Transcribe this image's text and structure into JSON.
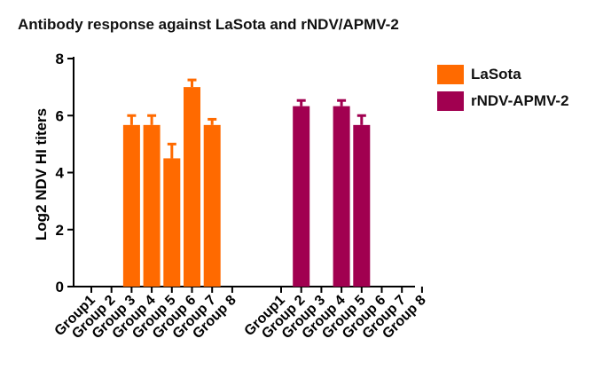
{
  "chart_data": {
    "type": "bar",
    "title": "Antibody response against LaSota and rNDV/APMV-2",
    "xlabel": "",
    "ylabel": "Log2 NDV HI titers",
    "ylim": [
      0,
      8
    ],
    "yticks": [
      "0",
      "2",
      "4",
      "6",
      "8"
    ],
    "grid": false,
    "legend_position": "top-right",
    "groups": [
      {
        "series": "LaSota",
        "color": "#ff6a00",
        "categories": [
          "Group1",
          "Group 2",
          "Group 3",
          "Group 4",
          "Group 5",
          "Group 6",
          "Group 7",
          "Group 8"
        ],
        "values": [
          0,
          0,
          5.67,
          5.67,
          4.5,
          7.0,
          5.67,
          0
        ],
        "errors": [
          0,
          0,
          0.33,
          0.33,
          0.5,
          0.25,
          0.2,
          0
        ]
      },
      {
        "series": "rNDV-APMV-2",
        "color": "#a10050",
        "categories": [
          "Group1",
          "Group 2",
          "Group 3",
          "Group 4",
          "Group 5",
          "Group 6",
          "Group 7",
          "Group 8"
        ],
        "values": [
          0,
          6.33,
          0,
          6.33,
          5.67,
          0,
          0,
          0
        ],
        "errors": [
          0,
          0.2,
          0,
          0.2,
          0.33,
          0,
          0,
          0
        ]
      }
    ],
    "legend": [
      {
        "label": "LaSota",
        "color": "#ff6a00"
      },
      {
        "label": "rNDV-APMV-2",
        "color": "#a10050"
      }
    ]
  }
}
